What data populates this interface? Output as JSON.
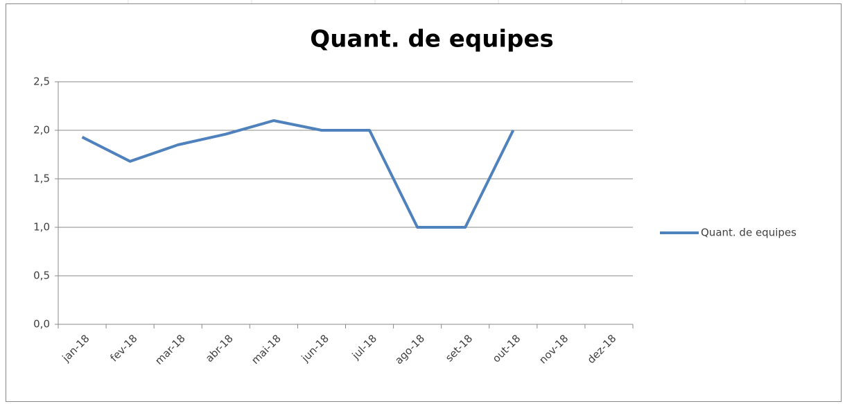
{
  "chart_data": {
    "type": "line",
    "title": "Quant. de equipes",
    "categories": [
      "jan-18",
      "fev-18",
      "mar-18",
      "abr-18",
      "mai-18",
      "jun-18",
      "jul-18",
      "ago-18",
      "set-18",
      "out-18",
      "nov-18",
      "dez-18"
    ],
    "series": [
      {
        "name": "Quant. de equipes",
        "color": "#4f81bd",
        "values": [
          1.93,
          1.68,
          1.85,
          1.96,
          2.1,
          2.0,
          2.0,
          1.0,
          1.0,
          2.0,
          null,
          null
        ]
      }
    ],
    "ylim": [
      0,
      2.5
    ],
    "yticks": [
      {
        "value": 0,
        "label": "0,0"
      },
      {
        "value": 0.5,
        "label": "0,5"
      },
      {
        "value": 1,
        "label": "1,0"
      },
      {
        "value": 1.5,
        "label": "1,5"
      },
      {
        "value": 2,
        "label": "2,0"
      },
      {
        "value": 2.5,
        "label": "2,5"
      }
    ],
    "grid": true,
    "legend": "right"
  }
}
